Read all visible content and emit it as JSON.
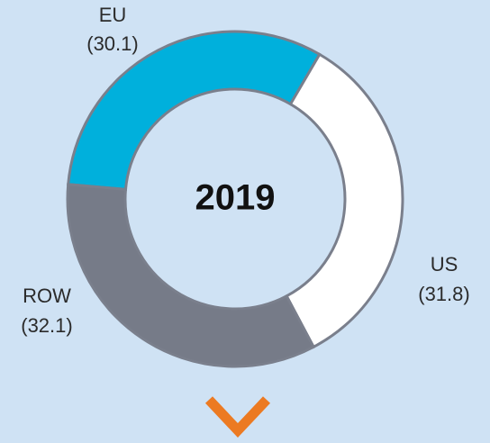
{
  "chart_data": {
    "type": "donut",
    "title": "2019",
    "categories": [
      "EU",
      "US",
      "ROW"
    ],
    "values": [
      30.1,
      31.8,
      32.1
    ],
    "value_labels": [
      "(30.1)",
      "(31.8)",
      "(32.1)"
    ],
    "colors": [
      "#00b0dc",
      "#ffffff",
      "#767b88"
    ]
  }
}
